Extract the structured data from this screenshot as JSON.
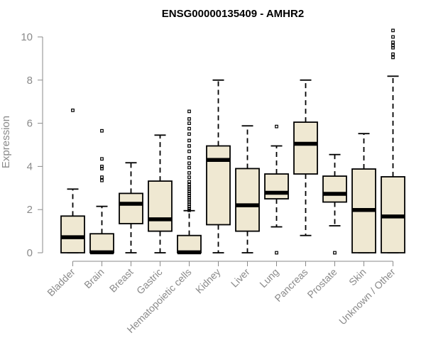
{
  "chart_data": {
    "type": "box",
    "title": "ENSG00000135409 - AMHR2",
    "ylabel": "Expression",
    "xlabel": "",
    "ylim": [
      0,
      10
    ],
    "yticks": [
      0,
      2,
      4,
      6,
      8,
      10
    ],
    "box_fill": "#efe8d2",
    "box_stroke": "#000000",
    "categories": [
      "Bladder",
      "Brain",
      "Breast",
      "Gastric",
      "Hematopoietic cells",
      "Kidney",
      "Liver",
      "Lung",
      "Pancreas",
      "Prostate",
      "Skin",
      "Unknown / Other"
    ],
    "boxes": [
      {
        "min": 0,
        "q1": 0,
        "median": 0.72,
        "q3": 1.7,
        "max": 2.95,
        "outliers": [
          6.6
        ]
      },
      {
        "min": 0,
        "q1": 0,
        "median": 0.02,
        "q3": 0.88,
        "max": 2.15,
        "outliers": [
          3.35,
          3.5,
          3.9,
          4.0,
          4.35,
          5.65
        ]
      },
      {
        "min": 0,
        "q1": 1.35,
        "median": 2.27,
        "q3": 2.75,
        "max": 4.17,
        "outliers": []
      },
      {
        "min": 0,
        "q1": 1.0,
        "median": 1.55,
        "q3": 3.32,
        "max": 5.45,
        "outliers": []
      },
      {
        "min": 0,
        "q1": 0,
        "median": 0.02,
        "q3": 0.8,
        "max": 1.95,
        "outliers": [
          1.97,
          2.05,
          2.15,
          2.25,
          2.35,
          2.45,
          2.55,
          2.65,
          2.75,
          2.85,
          2.95,
          3.05,
          3.15,
          3.3,
          3.5,
          3.7,
          3.95,
          4.15,
          4.4,
          4.7,
          4.95,
          5.2,
          5.5,
          5.75,
          6.0,
          6.2,
          6.55
        ]
      },
      {
        "min": 0,
        "q1": 1.3,
        "median": 4.3,
        "q3": 4.95,
        "max": 8.0,
        "outliers": []
      },
      {
        "min": 0,
        "q1": 1.0,
        "median": 2.2,
        "q3": 3.9,
        "max": 5.88,
        "outliers": []
      },
      {
        "min": 1.2,
        "q1": 2.5,
        "median": 2.78,
        "q3": 3.65,
        "max": 4.95,
        "outliers": [
          0,
          5.85
        ]
      },
      {
        "min": 0.8,
        "q1": 3.65,
        "median": 5.05,
        "q3": 6.05,
        "max": 8.0,
        "outliers": []
      },
      {
        "min": 1.25,
        "q1": 2.35,
        "median": 2.73,
        "q3": 3.55,
        "max": 4.55,
        "outliers": [
          0
        ]
      },
      {
        "min": 0,
        "q1": 0,
        "median": 1.98,
        "q3": 3.88,
        "max": 5.52,
        "outliers": []
      },
      {
        "min": 0,
        "q1": 0,
        "median": 1.68,
        "q3": 3.52,
        "max": 8.18,
        "outliers": [
          9.05,
          9.2,
          9.5,
          9.6,
          9.75,
          10.0,
          10.3
        ]
      }
    ]
  }
}
